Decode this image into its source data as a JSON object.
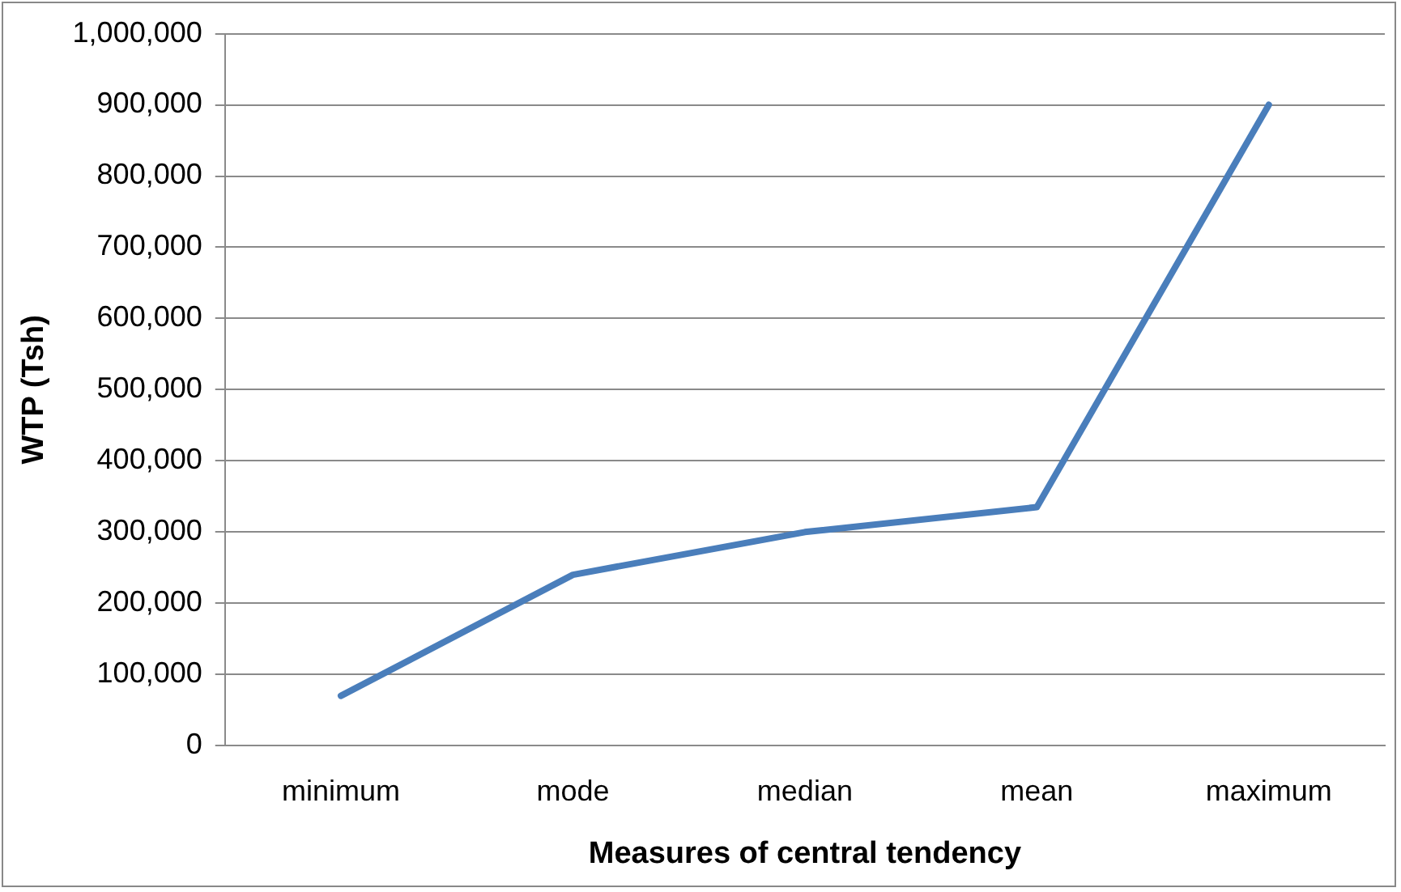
{
  "chart_data": {
    "type": "line",
    "xlabel": "Measures of central tendency",
    "ylabel": "WTP (Tsh)",
    "categories": [
      "minimum",
      "mode",
      "median",
      "mean",
      "maximum"
    ],
    "series": [
      {
        "color": "#4a7ebb",
        "values": [
          70000,
          240000,
          300000,
          335000,
          900000
        ]
      }
    ],
    "ylim": [
      0,
      1000000
    ],
    "yticks": [
      0,
      {
        "value": 100000,
        "label": "100,000"
      },
      {
        "value": 200000,
        "label": "200,000"
      },
      {
        "value": 300000,
        "label": "300,000"
      },
      {
        "value": 400000,
        "label": "400,000"
      },
      {
        "value": 500000,
        "label": "500,000"
      },
      {
        "value": 600000,
        "label": "600,000"
      },
      {
        "value": 700000,
        "label": "700,000"
      },
      {
        "value": 800000,
        "label": "800,000"
      },
      {
        "value": 900000,
        "label": "900,000"
      },
      {
        "value": 1000000,
        "label": "1,000,000"
      }
    ],
    "grid": "y",
    "legend": false,
    "marker": "none",
    "line_style": "solid"
  }
}
